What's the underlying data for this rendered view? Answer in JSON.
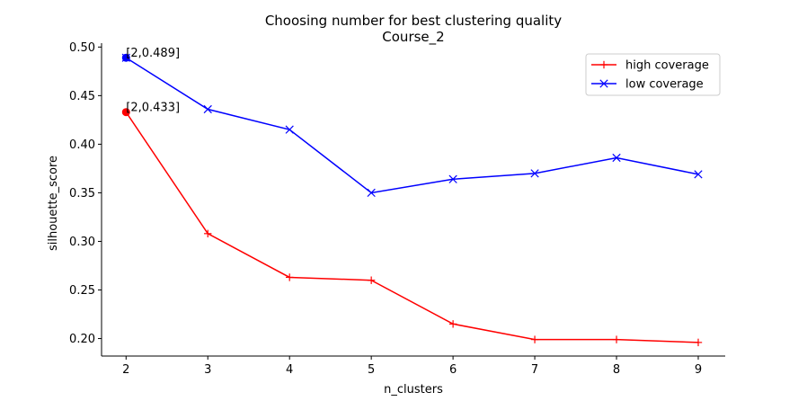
{
  "chart_data": {
    "type": "line",
    "title": "Choosing number for best clustering quality",
    "subtitle": "Course_2",
    "xlabel": "n_clusters",
    "ylabel": "silhouette_score",
    "x": [
      2,
      3,
      4,
      5,
      6,
      7,
      8,
      9
    ],
    "xlim": [
      1.7,
      9.33
    ],
    "ylim": [
      0.182,
      0.504
    ],
    "yticks": [
      0.2,
      0.25,
      0.3,
      0.35,
      0.4,
      0.45,
      0.5
    ],
    "ytick_labels": [
      "0.20",
      "0.25",
      "0.30",
      "0.35",
      "0.40",
      "0.45",
      "0.50"
    ],
    "xtick_labels": [
      "2",
      "3",
      "4",
      "5",
      "6",
      "7",
      "8",
      "9"
    ],
    "grid": false,
    "legend_position": "top-right",
    "series": [
      {
        "name": "high coverage",
        "color": "#ff0000",
        "marker": "plus",
        "values": [
          0.433,
          0.308,
          0.263,
          0.26,
          0.215,
          0.199,
          0.199,
          0.196
        ]
      },
      {
        "name": "low coverage",
        "color": "#0000ff",
        "marker": "x",
        "values": [
          0.489,
          0.436,
          0.415,
          0.35,
          0.364,
          0.37,
          0.386,
          0.369
        ]
      }
    ],
    "annotations": [
      {
        "text": "[2,0.433]",
        "x": 2,
        "y": 0.433,
        "color": "#ff0000"
      },
      {
        "text": "[2,0.489]",
        "x": 2,
        "y": 0.489,
        "color": "#0000ff"
      }
    ]
  }
}
